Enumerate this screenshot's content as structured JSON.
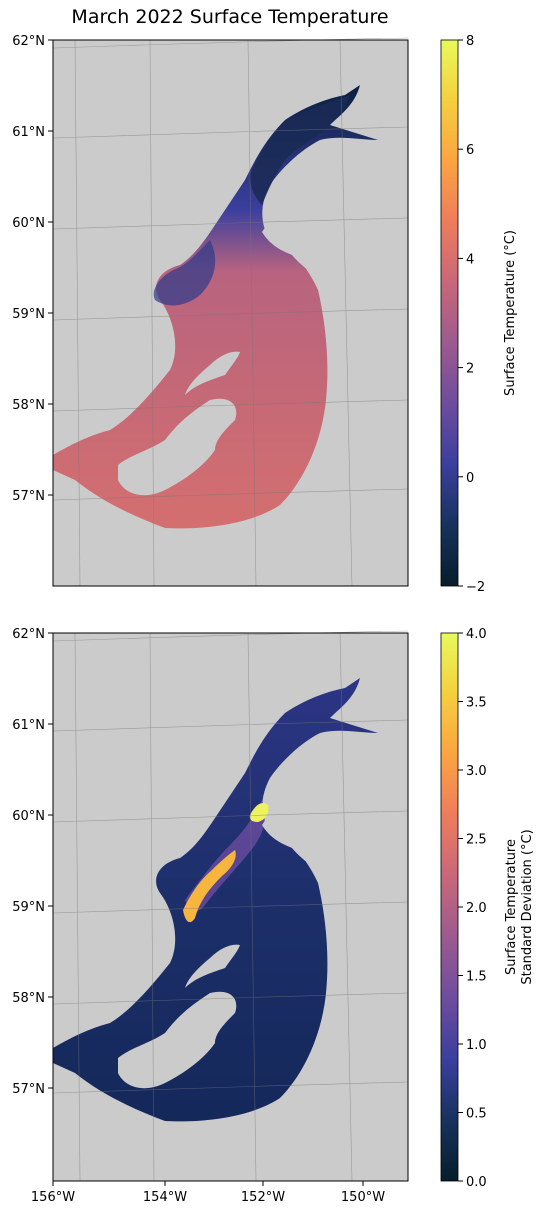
{
  "title": "March 2022 Surface Temperature",
  "colors": {
    "land": "#cbcbcb",
    "grid": "#777777",
    "cmap": [
      "#061d2b",
      "#17325d",
      "#3a3f9e",
      "#6e4c9e",
      "#9c5a8f",
      "#c9677a",
      "#ee7c5c",
      "#fba441",
      "#f5cf3f",
      "#e8fa5b"
    ]
  },
  "chart_data": [
    {
      "type": "heatmap",
      "name": "surface-temperature-map",
      "lat_ticks": [
        "62°N",
        "61°N",
        "60°N",
        "59°N",
        "58°N",
        "57°N"
      ],
      "lon_ticks": [],
      "colorbar": {
        "label": "Surface Temperature (°C)",
        "range": [
          -2,
          8
        ],
        "ticks": [
          "8",
          "6",
          "4",
          "2",
          "0",
          "−2"
        ]
      },
      "lat_range": [
        56,
        62
      ],
      "lon_range": [
        -156,
        -149
      ]
    },
    {
      "type": "heatmap",
      "name": "surface-temperature-std-map",
      "lat_ticks": [
        "62°N",
        "61°N",
        "60°N",
        "59°N",
        "58°N",
        "57°N"
      ],
      "lon_ticks": [
        "156°W",
        "154°W",
        "152°W",
        "150°W"
      ],
      "colorbar": {
        "label_line1": "Surface Temperature",
        "label_line2": "Standard Deviation (°C)",
        "range": [
          0,
          4
        ],
        "ticks": [
          "4.0",
          "3.5",
          "3.0",
          "2.5",
          "2.0",
          "1.5",
          "1.0",
          "0.5",
          "0.0"
        ]
      },
      "lat_range": [
        56,
        62
      ],
      "lon_range": [
        -156,
        -149
      ]
    }
  ]
}
